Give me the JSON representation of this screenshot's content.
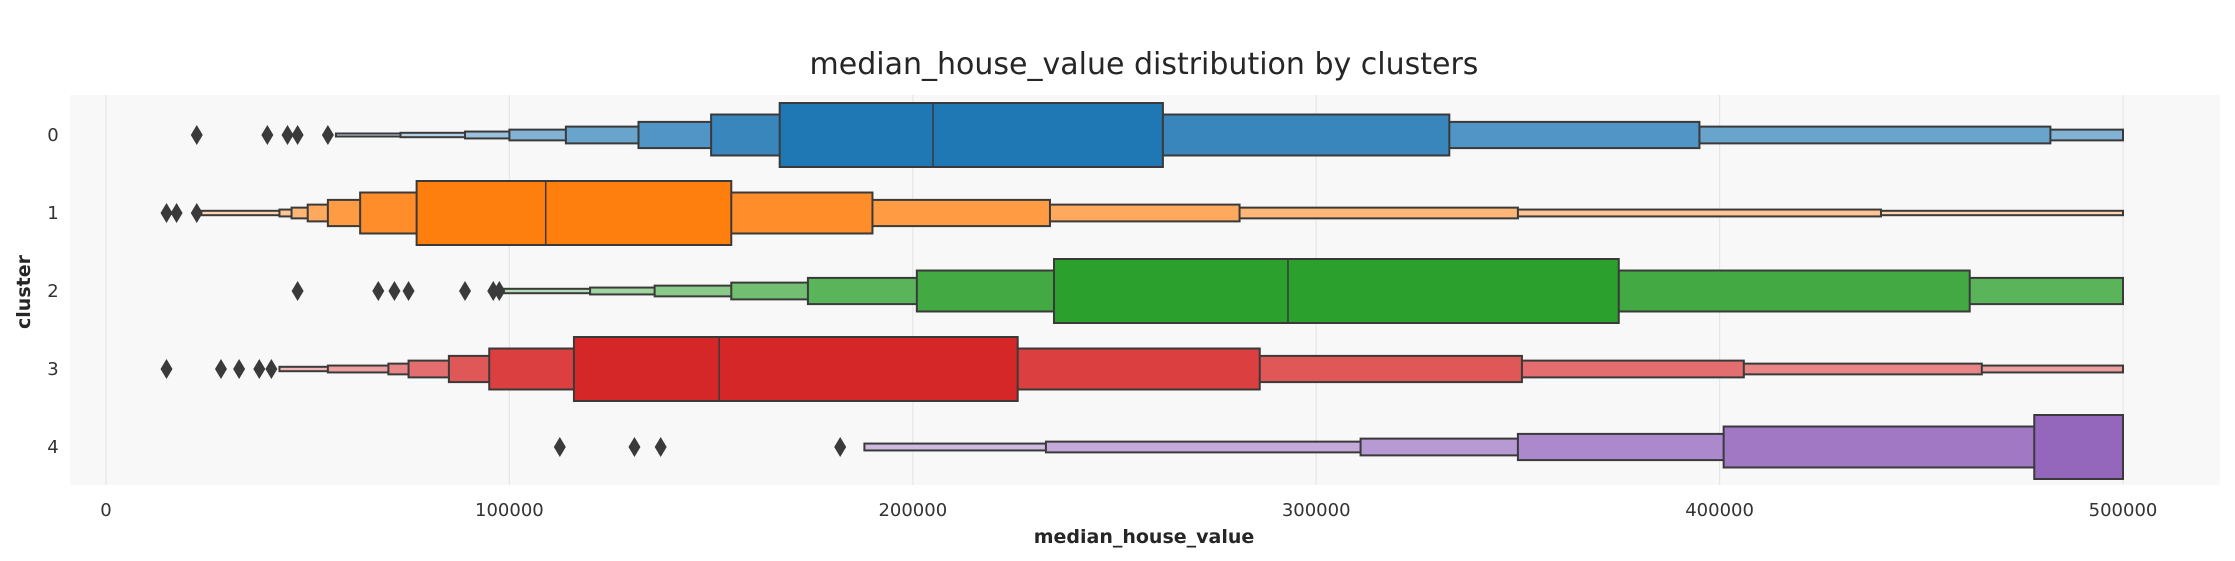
{
  "chart_data": {
    "type": "boxen",
    "title": "median_house_value distribution by clusters",
    "xlabel": "median_house_value",
    "ylabel": "cluster",
    "xlim": [
      0,
      500000
    ],
    "x_ticks": [
      "0",
      "100000",
      "200000",
      "300000",
      "400000",
      "500000"
    ],
    "categories": [
      "0",
      "1",
      "2",
      "3",
      "4"
    ],
    "grid": "vertical",
    "orientation": "horizontal",
    "series": [
      {
        "category": "0",
        "color": "#1f77b4",
        "median": 205000,
        "boxes": [
          [
            167000,
            262000
          ],
          [
            150000,
            333000
          ],
          [
            132000,
            395000
          ],
          [
            114000,
            482000
          ],
          [
            100000,
            500000
          ],
          [
            89000,
            500000
          ],
          [
            73000,
            500000
          ],
          [
            57000,
            500000
          ]
        ],
        "outliers": [
          22500,
          40000,
          45000,
          47500,
          55000
        ]
      },
      {
        "category": "1",
        "color": "#ff7f0e",
        "median": 109000,
        "boxes": [
          [
            77000,
            155000
          ],
          [
            63000,
            190000
          ],
          [
            55000,
            234000
          ],
          [
            50000,
            281000
          ],
          [
            46000,
            350000
          ],
          [
            43000,
            440000
          ],
          [
            23000,
            500000
          ]
        ],
        "outliers": [
          15000,
          17500,
          22500
        ]
      },
      {
        "category": "2",
        "color": "#2ca02c",
        "median": 293000,
        "boxes": [
          [
            235000,
            375000
          ],
          [
            201000,
            462000
          ],
          [
            174000,
            500000
          ],
          [
            155000,
            500000
          ],
          [
            136000,
            500000
          ],
          [
            120000,
            500000
          ],
          [
            98000,
            500000
          ]
        ],
        "outliers": [
          47500,
          67500,
          71500,
          75000,
          89000,
          96000,
          97500
        ]
      },
      {
        "category": "3",
        "color": "#d62728",
        "median": 152000,
        "boxes": [
          [
            116000,
            226000
          ],
          [
            95000,
            286000
          ],
          [
            85000,
            351000
          ],
          [
            75000,
            406000
          ],
          [
            70000,
            465000
          ],
          [
            55000,
            500000
          ],
          [
            43000,
            500000
          ]
        ],
        "outliers": [
          15000,
          28500,
          33000,
          38000,
          41000
        ]
      },
      {
        "category": "4",
        "color": "#9467bd",
        "median": 500000,
        "boxes": [
          [
            478000,
            500000
          ],
          [
            401000,
            500000
          ],
          [
            350000,
            500000
          ],
          [
            311000,
            500000
          ],
          [
            233000,
            500000
          ],
          [
            188000,
            500000
          ]
        ],
        "outliers": [
          112500,
          131000,
          137500,
          182000
        ]
      }
    ]
  }
}
